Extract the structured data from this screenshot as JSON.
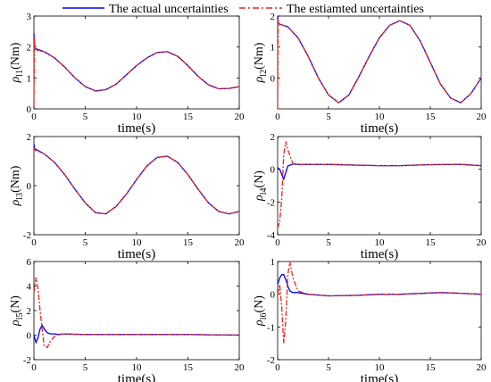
{
  "legend": {
    "actual_label": "The actual uncertainties",
    "estimated_label": "The estiamted uncertainties",
    "actual_color": "#0000ff",
    "estimated_color": "#e8261b"
  },
  "chart_data": [
    {
      "type": "line",
      "ylabel": "ρ_{l1}(Nm)",
      "ylabel_symbol": "ρ",
      "ylabel_sub": "l1",
      "ylabel_unit": "(Nm)",
      "xlabel": "time(s)",
      "xlim": [
        0,
        20
      ],
      "ylim": [
        0,
        3
      ],
      "xticks": [
        0,
        5,
        10,
        15,
        20
      ],
      "yticks": [
        0,
        1,
        2,
        3
      ],
      "x": [
        0,
        0.05,
        0.1,
        1,
        2,
        3,
        4,
        5,
        6,
        7,
        8,
        9,
        10,
        11,
        12,
        13,
        14,
        15,
        16,
        17,
        18,
        19,
        20
      ],
      "series": [
        {
          "name": "The actual uncertainties",
          "values": [
            2.45,
            2.0,
            1.95,
            1.85,
            1.65,
            1.35,
            1.0,
            0.72,
            0.58,
            0.62,
            0.8,
            1.1,
            1.4,
            1.65,
            1.82,
            1.85,
            1.7,
            1.4,
            1.05,
            0.78,
            0.65,
            0.66,
            0.72
          ]
        },
        {
          "name": "The estiamted uncertainties",
          "values": [
            0.1,
            2.3,
            1.9,
            1.85,
            1.65,
            1.35,
            1.0,
            0.72,
            0.58,
            0.62,
            0.8,
            1.1,
            1.4,
            1.65,
            1.82,
            1.85,
            1.7,
            1.4,
            1.05,
            0.78,
            0.65,
            0.66,
            0.72
          ]
        }
      ]
    },
    {
      "type": "line",
      "ylabel": "ρ_{l2}(Nm)",
      "ylabel_symbol": "ρ",
      "ylabel_sub": "l2",
      "ylabel_unit": "(Nm)",
      "xlabel": "time(s)",
      "xlim": [
        0,
        20
      ],
      "ylim": [
        -1,
        2
      ],
      "xticks": [
        0,
        5,
        10,
        15,
        20
      ],
      "yticks": [
        0,
        1,
        2
      ],
      "x": [
        0,
        0.05,
        0.1,
        1,
        2,
        3,
        4,
        5,
        6,
        7,
        8,
        9,
        10,
        11,
        12,
        13,
        14,
        15,
        16,
        17,
        18,
        19,
        20
      ],
      "series": [
        {
          "name": "The actual uncertainties",
          "values": [
            2.0,
            1.8,
            1.75,
            1.65,
            1.3,
            0.7,
            0.0,
            -0.55,
            -0.8,
            -0.55,
            0.05,
            0.7,
            1.3,
            1.7,
            1.85,
            1.7,
            1.2,
            0.5,
            -0.2,
            -0.65,
            -0.8,
            -0.5,
            0.0
          ]
        },
        {
          "name": "The estiamted uncertainties",
          "values": [
            -1.0,
            1.9,
            1.75,
            1.65,
            1.3,
            0.7,
            0.0,
            -0.55,
            -0.8,
            -0.55,
            0.05,
            0.7,
            1.3,
            1.7,
            1.85,
            1.7,
            1.2,
            0.5,
            -0.2,
            -0.65,
            -0.8,
            -0.5,
            0.0
          ]
        }
      ]
    },
    {
      "type": "line",
      "ylabel": "ρ_{l3}(Nm)",
      "ylabel_symbol": "ρ",
      "ylabel_sub": "l3",
      "ylabel_unit": "(Nm)",
      "xlabel": "time(s)",
      "xlim": [
        0,
        20
      ],
      "ylim": [
        -2,
        2
      ],
      "xticks": [
        0,
        5,
        10,
        15,
        20
      ],
      "yticks": [
        -2,
        0,
        2
      ],
      "x": [
        0,
        0.05,
        0.1,
        1,
        2,
        3,
        4,
        5,
        6,
        7,
        8,
        9,
        10,
        11,
        12,
        13,
        14,
        15,
        16,
        17,
        18,
        19,
        20
      ],
      "series": [
        {
          "name": "The actual uncertainties",
          "values": [
            1.7,
            1.55,
            1.5,
            1.3,
            0.95,
            0.45,
            -0.15,
            -0.7,
            -1.1,
            -1.15,
            -0.85,
            -0.35,
            0.25,
            0.8,
            1.15,
            1.2,
            0.95,
            0.45,
            -0.15,
            -0.7,
            -1.05,
            -1.15,
            -1.05
          ]
        },
        {
          "name": "The estiamted uncertainties",
          "values": [
            1.4,
            1.5,
            1.45,
            1.3,
            0.95,
            0.45,
            -0.15,
            -0.7,
            -1.1,
            -1.15,
            -0.85,
            -0.35,
            0.25,
            0.8,
            1.15,
            1.2,
            0.95,
            0.45,
            -0.15,
            -0.7,
            -1.05,
            -1.15,
            -1.05
          ]
        }
      ]
    },
    {
      "type": "line",
      "ylabel": "ρ_{l4}(N)",
      "ylabel_symbol": "ρ",
      "ylabel_sub": "l4",
      "ylabel_unit": "(N)",
      "xlabel": "time(s)",
      "xlim": [
        0,
        20
      ],
      "ylim": [
        -4,
        2
      ],
      "xticks": [
        0,
        5,
        10,
        15,
        20
      ],
      "yticks": [
        -4,
        -2,
        0,
        2
      ],
      "x": [
        0,
        0.2,
        0.4,
        0.6,
        0.8,
        1,
        1.5,
        2,
        3,
        5,
        8,
        10,
        12,
        15,
        18,
        20
      ],
      "series": [
        {
          "name": "The actual uncertainties",
          "values": [
            0.1,
            0.0,
            -0.3,
            -0.6,
            -0.2,
            0.2,
            0.32,
            0.3,
            0.3,
            0.3,
            0.25,
            0.22,
            0.22,
            0.28,
            0.3,
            0.22
          ]
        },
        {
          "name": "The estiamted uncertainties",
          "values": [
            -3.6,
            -3.2,
            -1.8,
            0.9,
            1.7,
            1.2,
            0.35,
            0.28,
            0.3,
            0.3,
            0.25,
            0.22,
            0.22,
            0.28,
            0.3,
            0.22
          ]
        }
      ]
    },
    {
      "type": "line",
      "ylabel": "ρ_{l5}(N)",
      "ylabel_symbol": "ρ",
      "ylabel_sub": "l5",
      "ylabel_unit": "(N)",
      "xlabel": "time(s)",
      "xlim": [
        0,
        20
      ],
      "ylim": [
        -2,
        6
      ],
      "xticks": [
        0,
        5,
        10,
        15,
        20
      ],
      "yticks": [
        -2,
        0,
        2,
        4,
        6
      ],
      "x": [
        0,
        0.2,
        0.4,
        0.6,
        0.8,
        1,
        1.3,
        1.6,
        2,
        2.5,
        3,
        5,
        10,
        15,
        20
      ],
      "series": [
        {
          "name": "The actual uncertainties",
          "values": [
            0.0,
            -0.6,
            -0.2,
            0.5,
            0.8,
            0.5,
            0.2,
            0.1,
            0.1,
            0.05,
            0.1,
            0.05,
            0.05,
            0.05,
            0.0
          ]
        },
        {
          "name": "The estiamted uncertainties",
          "values": [
            3.5,
            4.7,
            3.8,
            2.0,
            0.5,
            -0.9,
            -1.0,
            -0.5,
            -0.1,
            0.1,
            0.08,
            0.05,
            0.05,
            0.05,
            0.0
          ]
        }
      ]
    },
    {
      "type": "line",
      "ylabel": "ρ_{l6}(N)",
      "ylabel_symbol": "ρ",
      "ylabel_sub": "l6",
      "ylabel_unit": "(N)",
      "xlabel": "time(s)",
      "xlim": [
        0,
        20
      ],
      "ylim": [
        -2,
        1
      ],
      "xticks": [
        0,
        5,
        10,
        15,
        20
      ],
      "yticks": [
        -2,
        -1,
        0,
        1
      ],
      "x": [
        0,
        0.2,
        0.4,
        0.6,
        0.8,
        1,
        1.2,
        1.5,
        2,
        3,
        5,
        8,
        10,
        12,
        16,
        18,
        20
      ],
      "series": [
        {
          "name": "The actual uncertainties",
          "values": [
            0.3,
            0.5,
            0.6,
            0.6,
            0.45,
            0.25,
            0.1,
            0.05,
            0.05,
            0.0,
            -0.05,
            -0.03,
            0.0,
            0.0,
            0.05,
            0.03,
            0.0
          ]
        },
        {
          "name": "The estiamted uncertainties",
          "values": [
            0.0,
            0.3,
            -0.4,
            -1.5,
            -0.8,
            0.6,
            1.0,
            0.5,
            0.1,
            0.0,
            -0.05,
            -0.03,
            0.0,
            0.0,
            0.05,
            0.03,
            0.0
          ]
        }
      ]
    }
  ]
}
